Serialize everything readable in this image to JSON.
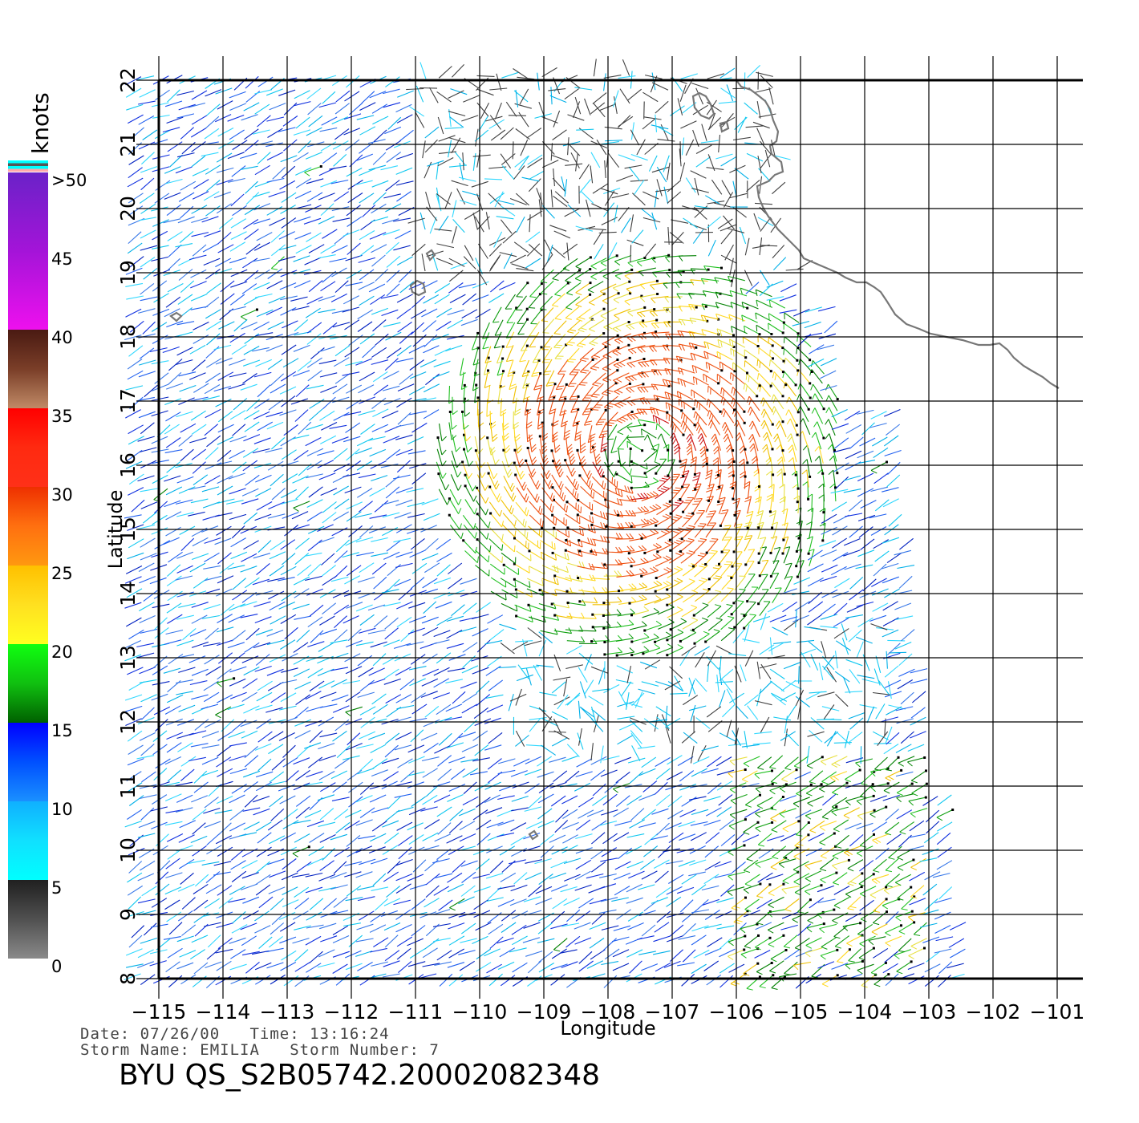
{
  "colorbar": {
    "unit_label": "knots",
    "tick_labels": [
      ">50",
      "45",
      "40",
      "35",
      "30",
      "25",
      "20",
      "15",
      "10",
      "5",
      "0"
    ],
    "segments": [
      {
        "from": 50,
        "to": 40,
        "colors": [
          "#6a22c8",
          "#a414d8",
          "#ee10ee"
        ]
      },
      {
        "from": 40,
        "to": 35,
        "colors": [
          "#4a1a12",
          "#7a3e28",
          "#c08a66"
        ]
      },
      {
        "from": 35,
        "to": 30,
        "colors": [
          "#ff0000",
          "#ff2a10",
          "#ff3018"
        ]
      },
      {
        "from": 30,
        "to": 25,
        "colors": [
          "#ee3000",
          "#ff7010",
          "#ff9810"
        ]
      },
      {
        "from": 25,
        "to": 20,
        "colors": [
          "#ffc000",
          "#ffe020",
          "#ffff20"
        ]
      },
      {
        "from": 20,
        "to": 15,
        "colors": [
          "#10ff10",
          "#10c010",
          "#006000"
        ]
      },
      {
        "from": 15,
        "to": 10,
        "colors": [
          "#0000ff",
          "#0050ff",
          "#1a90ff"
        ]
      },
      {
        "from": 10,
        "to": 5,
        "colors": [
          "#10b0ff",
          "#10e0ff",
          "#00ffff"
        ]
      },
      {
        "from": 5,
        "to": 0,
        "colors": [
          "#202020",
          "#505050",
          "#8a8a8a"
        ]
      }
    ],
    "top_strip_colors": [
      "#00ffff",
      "#555555",
      "#00ffff",
      "#ffaaaa"
    ]
  },
  "axes": {
    "x_label": "Longitude",
    "y_label": "Latitude",
    "x_tick_labels": [
      "−115",
      "−114",
      "−113",
      "−112",
      "−111",
      "−110",
      "−109",
      "−108",
      "−107",
      "−106",
      "−105",
      "−104",
      "−103",
      "−102",
      "−101"
    ],
    "y_tick_labels": [
      "8",
      "9",
      "10",
      "11",
      "12",
      "13",
      "14",
      "15",
      "16",
      "17",
      "18",
      "19",
      "20",
      "21",
      "22"
    ],
    "xlim": [
      -115,
      -101
    ],
    "ylim": [
      8,
      22
    ],
    "grid": true
  },
  "map_features": {
    "coastline": "Mexico Pacific coast (-106.1, 22) to (-101, 17.2)",
    "islands": "Revillagigedo, Tres Marias, Clipperton",
    "swath": "QuikSCAT wind vectors, speed color-coded by knots; rain-flagged cells marked with small squares",
    "storm_center_approx": {
      "lon": -107.5,
      "lat": 16.2
    }
  },
  "info": {
    "date_line": "Date: 07/26/00   Time: 13:16:24",
    "storm_line": "Storm Name: EMILIA   Storm Number: 7",
    "file_id": "BYU QS_S2B05742.20002082348"
  }
}
